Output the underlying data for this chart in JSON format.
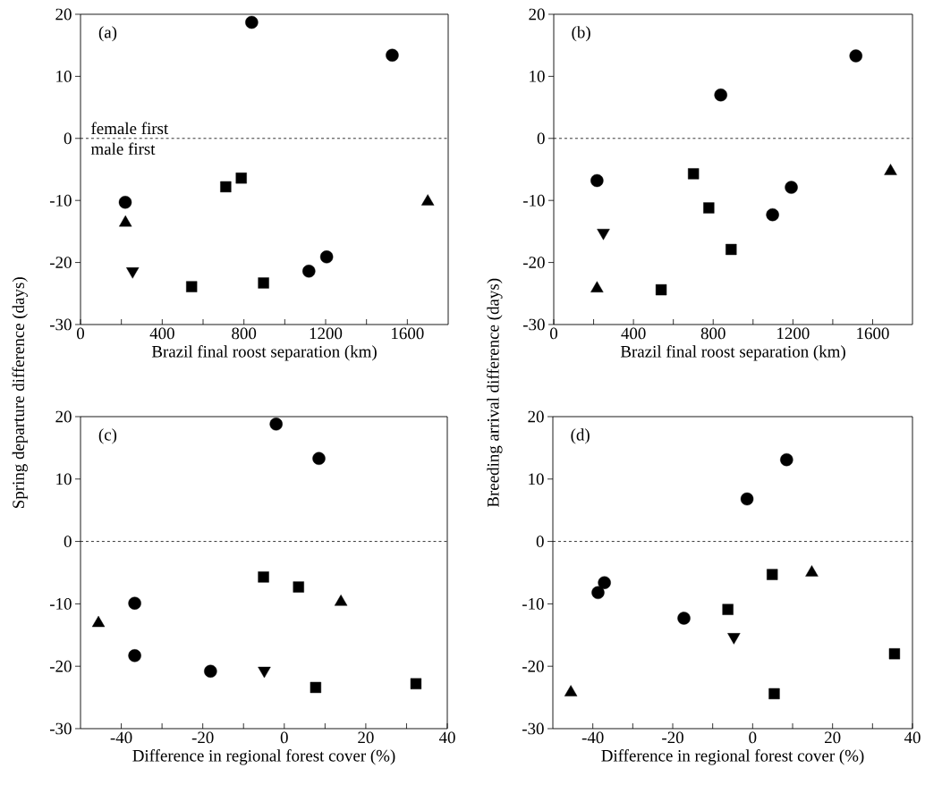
{
  "chart_data": [
    {
      "type": "scatter",
      "title": "(a)",
      "xlabel": "Brazil final roost separation (km)",
      "ylabel": "Spring departure difference (days)",
      "annotations": [
        "female first",
        "male first"
      ],
      "xlim": [
        0,
        1800
      ],
      "xticks": [
        0,
        {
          "value": 200,
          "label": null
        },
        400,
        {
          "value": 600,
          "label": null
        },
        800,
        {
          "value": 1000,
          "label": null
        },
        1200,
        {
          "value": 1400,
          "label": null
        },
        1600
      ],
      "ylim": [
        -30,
        20
      ],
      "yticks": [
        -30,
        -20,
        -10,
        0,
        10,
        20
      ],
      "ref_lines": [
        {
          "axis": "y",
          "value": 0,
          "color": "#000000",
          "line_style": "dashed"
        }
      ],
      "series": [
        {
          "marker": "circle",
          "color": "#000000",
          "x": [
            838,
            1526,
            219,
            1118,
            1205
          ],
          "values": [
            18.7,
            13.4,
            -10.3,
            -21.4,
            -19.1
          ]
        },
        {
          "marker": "square",
          "color": "#000000",
          "x": [
            711,
            787,
            544,
            896
          ],
          "values": [
            -7.8,
            -6.4,
            -23.9,
            -23.3
          ]
        },
        {
          "marker": "triangle",
          "color": "#000000",
          "x": [
            220,
            1700
          ],
          "values": [
            -13.6,
            -10.2
          ]
        },
        {
          "marker": "triangle_down",
          "color": "#000000",
          "x": [
            255
          ],
          "values": [
            -21.4
          ]
        }
      ]
    },
    {
      "type": "scatter",
      "title": "(b)",
      "xlabel": "Brazil final roost separation (km)",
      "ylabel": "Breeding arrival difference (days)",
      "xlim": [
        0,
        1800
      ],
      "xticks": [
        0,
        {
          "value": 200,
          "label": null
        },
        400,
        {
          "value": 600,
          "label": null
        },
        800,
        {
          "value": 1000,
          "label": null
        },
        1200,
        {
          "value": 1400,
          "label": null
        },
        1600
      ],
      "ylim": [
        -30,
        20
      ],
      "yticks": [
        -30,
        -20,
        -10,
        0,
        10,
        20
      ],
      "ref_lines": [
        {
          "axis": "y",
          "value": 0,
          "color": "#000000",
          "line_style": "dashed"
        }
      ],
      "series": [
        {
          "marker": "circle",
          "color": "#000000",
          "x": [
            838,
            1516,
            217,
            1098,
            1192
          ],
          "values": [
            7.0,
            13.3,
            -6.8,
            -12.3,
            -7.9
          ]
        },
        {
          "marker": "square",
          "color": "#000000",
          "x": [
            701,
            778,
            890,
            539
          ],
          "values": [
            -5.7,
            -11.2,
            -17.9,
            -24.4
          ]
        },
        {
          "marker": "triangle",
          "color": "#000000",
          "x": [
            217,
            1690
          ],
          "values": [
            -24.2,
            -5.3
          ]
        },
        {
          "marker": "triangle_down",
          "color": "#000000",
          "x": [
            249
          ],
          "values": [
            -15.2
          ]
        }
      ]
    },
    {
      "type": "scatter",
      "title": "(c)",
      "xlabel": "Difference in regional forest cover (%)",
      "xlim": [
        -50,
        40
      ],
      "xticks": [
        -40,
        {
          "value": -30,
          "label": null
        },
        -20,
        {
          "value": -10,
          "label": null
        },
        0,
        {
          "value": 10,
          "label": null
        },
        20,
        {
          "value": 30,
          "label": null
        },
        40
      ],
      "ylim": [
        -30,
        20
      ],
      "yticks": [
        -30,
        -20,
        -10,
        0,
        10,
        20
      ],
      "ref_lines": [
        {
          "axis": "y",
          "value": 0,
          "color": "#000000",
          "line_style": "dashed"
        }
      ],
      "series": [
        {
          "marker": "circle",
          "color": "#000000",
          "x": [
            -2.0,
            8.5,
            -36.7,
            -36.7,
            -18.1
          ],
          "values": [
            18.8,
            13.3,
            -9.9,
            -18.3,
            -20.8
          ]
        },
        {
          "marker": "square",
          "color": "#000000",
          "x": [
            -5.1,
            3.5,
            7.7,
            32.3
          ],
          "values": [
            -5.7,
            -7.3,
            -23.4,
            -22.8
          ]
        },
        {
          "marker": "triangle",
          "color": "#000000",
          "x": [
            -45.6,
            13.9
          ],
          "values": [
            -13.1,
            -9.7
          ]
        },
        {
          "marker": "triangle_down",
          "color": "#000000",
          "x": [
            -4.9
          ],
          "values": [
            -20.7
          ]
        }
      ]
    },
    {
      "type": "scatter",
      "title": "(d)",
      "xlabel": "Difference in regional forest cover (%)",
      "xlim": [
        -50,
        40
      ],
      "xticks": [
        -40,
        {
          "value": -30,
          "label": null
        },
        -20,
        {
          "value": -10,
          "label": null
        },
        0,
        {
          "value": 10,
          "label": null
        },
        20,
        {
          "value": 30,
          "label": null
        },
        40
      ],
      "ylim": [
        -30,
        20
      ],
      "yticks": [
        -30,
        -20,
        -10,
        0,
        10,
        20
      ],
      "ref_lines": [
        {
          "axis": "y",
          "value": 0,
          "color": "#000000",
          "line_style": "dashed"
        }
      ],
      "series": [
        {
          "marker": "circle",
          "color": "#000000",
          "x": [
            8.5,
            -1.4,
            -37.1,
            -38.7,
            -17.2
          ],
          "values": [
            13.1,
            6.8,
            -6.6,
            -8.2,
            -12.3
          ]
        },
        {
          "marker": "square",
          "color": "#000000",
          "x": [
            4.9,
            -6.2,
            5.4,
            35.5
          ],
          "values": [
            -5.3,
            -10.9,
            -24.4,
            -18.0
          ]
        },
        {
          "marker": "triangle",
          "color": "#000000",
          "x": [
            -45.5,
            14.8
          ],
          "values": [
            -24.2,
            -5.0
          ]
        },
        {
          "marker": "triangle_down",
          "color": "#000000",
          "x": [
            -4.7
          ],
          "values": [
            -15.3
          ]
        }
      ]
    }
  ]
}
